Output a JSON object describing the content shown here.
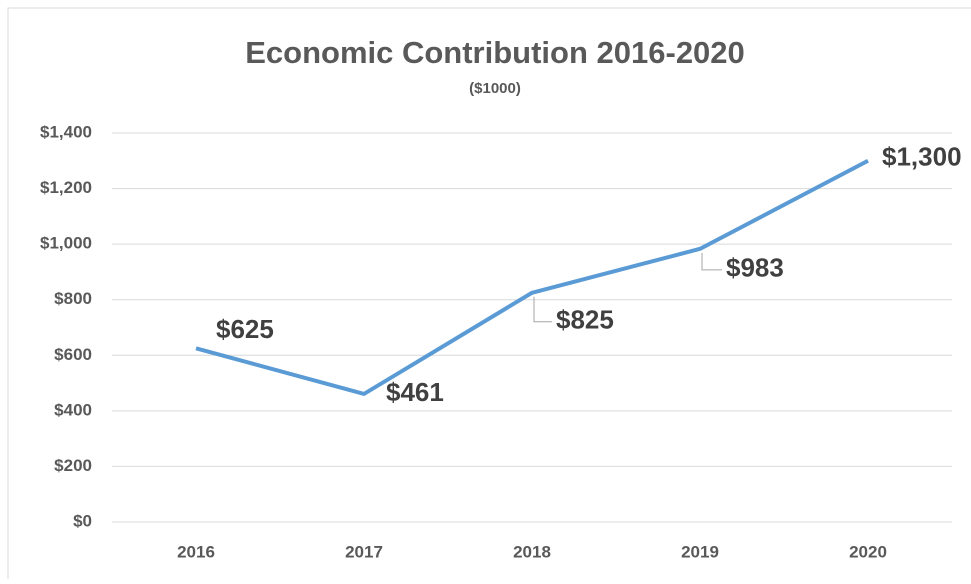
{
  "chart_data": {
    "type": "line",
    "title": "Economic Contribution 2016-2020",
    "subtitle": "($1000)",
    "categories": [
      "2016",
      "2017",
      "2018",
      "2019",
      "2020"
    ],
    "series": [
      {
        "name": "Economic Contribution",
        "color": "#5b9bd5",
        "values": [
          625,
          461,
          825,
          983,
          1300
        ],
        "value_labels": [
          "$625",
          "$461",
          "$825",
          "$983",
          "$1,300"
        ]
      }
    ],
    "ylim": [
      0,
      1400
    ],
    "yticks": [
      {
        "value": 0,
        "label": "$0"
      },
      {
        "value": 200,
        "label": "$200"
      },
      {
        "value": 400,
        "label": "$400"
      },
      {
        "value": 600,
        "label": "$600"
      },
      {
        "value": 800,
        "label": "$800"
      },
      {
        "value": 1000,
        "label": "$1,000"
      },
      {
        "value": 1200,
        "label": "$1,200"
      },
      {
        "value": 1400,
        "label": "$1,400"
      }
    ],
    "grid": true
  }
}
